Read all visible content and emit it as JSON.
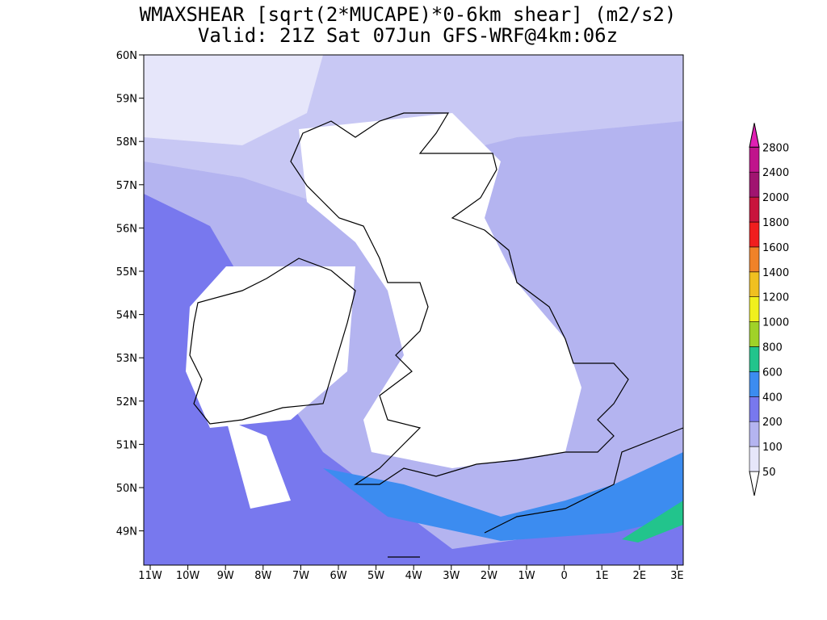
{
  "header": {
    "title": "WMAXSHEAR [sqrt(2*MUCAPE)*0-6km shear] (m2/s2)",
    "subtitle": "Valid: 21Z Sat 07Jun GFS-WRF@4km:06z"
  },
  "map": {
    "lat_labels": [
      "60N",
      "59N",
      "58N",
      "57N",
      "56N",
      "55N",
      "54N",
      "53N",
      "52N",
      "51N",
      "50N",
      "49N"
    ],
    "lon_labels": [
      "11W",
      "10W",
      "9W",
      "8W",
      "7W",
      "6W",
      "5W",
      "4W",
      "3W",
      "2W",
      "1W",
      "0",
      "1E",
      "2E",
      "3E"
    ]
  },
  "colorbar": {
    "levels": [
      50,
      100,
      200,
      400,
      600,
      800,
      1000,
      1200,
      1400,
      1600,
      1800,
      2000,
      2400,
      2800
    ],
    "colors": [
      "#ffffff",
      "#e6e6fa",
      "#b4b4f0",
      "#7878ee",
      "#3c8cf0",
      "#22c48c",
      "#a0d228",
      "#f0f01e",
      "#f0c020",
      "#f08228",
      "#f01e1e",
      "#c8143c",
      "#a01470",
      "#c0148c",
      "#e020b4"
    ]
  }
}
